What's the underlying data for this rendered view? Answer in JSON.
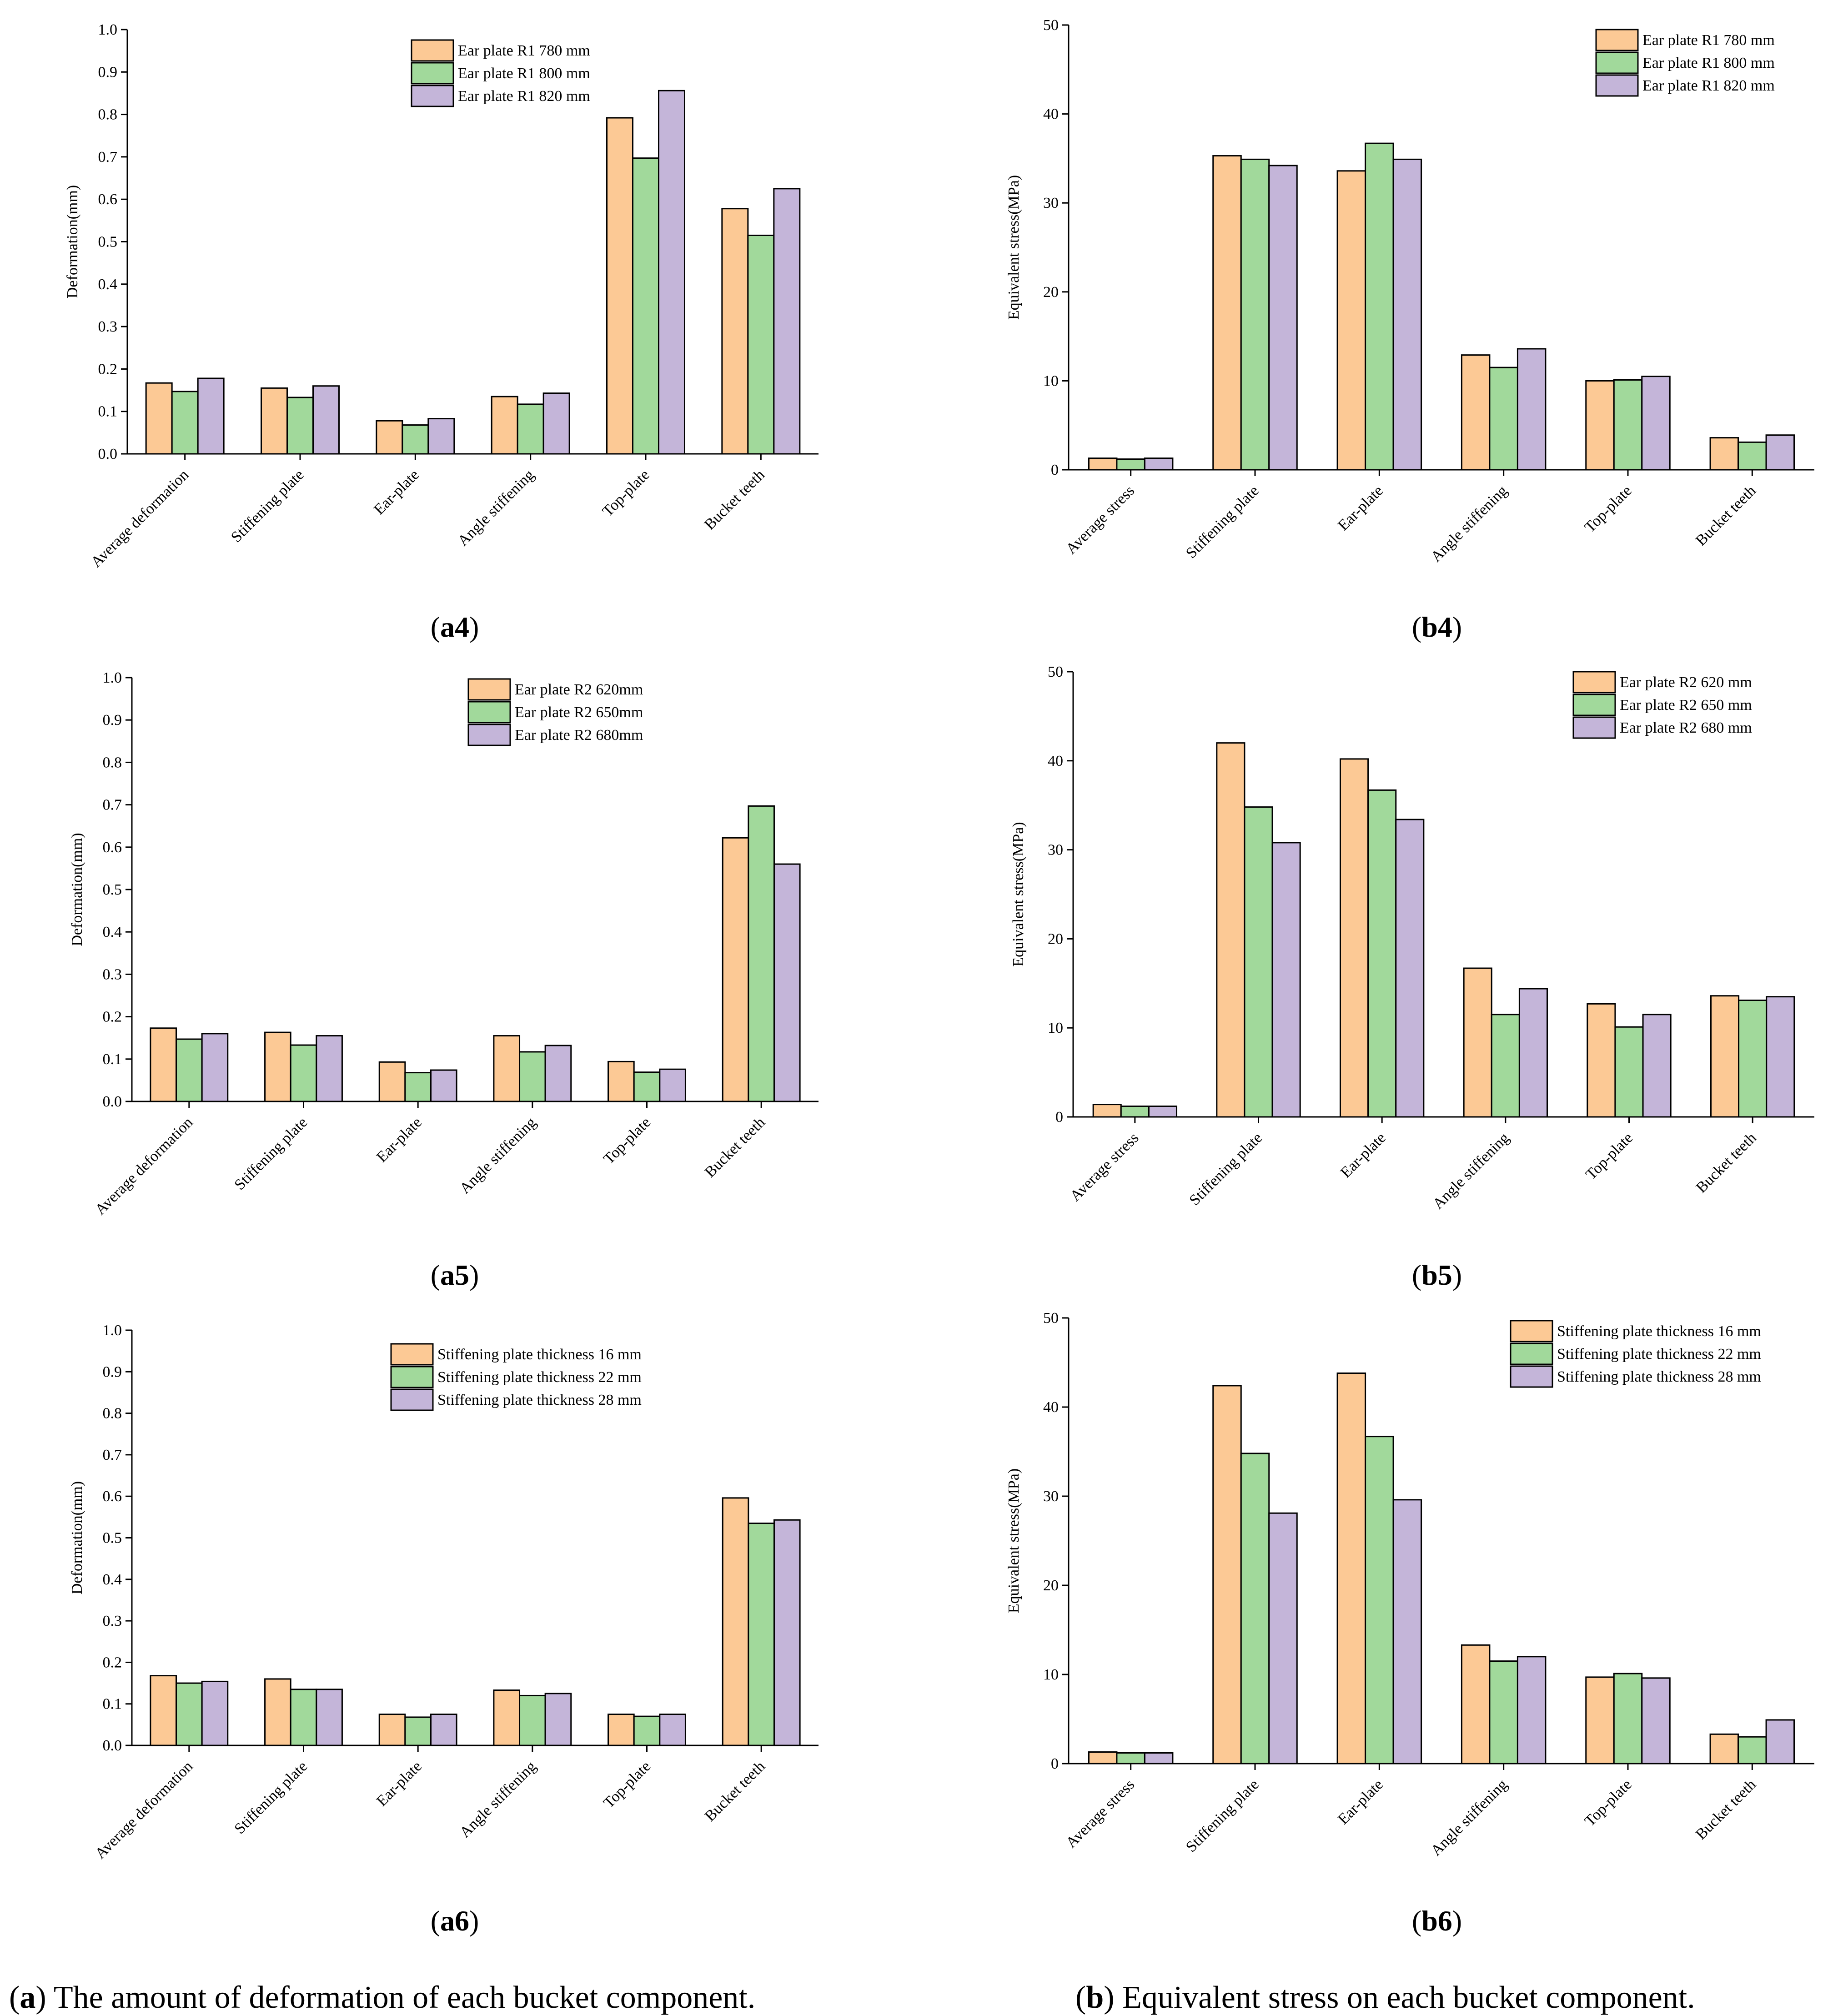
{
  "colors": {
    "series1": "#fcc995",
    "series2": "#a1d99b",
    "series3": "#c4b5d9",
    "stroke": "#000000"
  },
  "captions": {
    "a": {
      "letter": "a",
      "text": " The amount of deformation of each bucket component."
    },
    "b": {
      "letter": "b",
      "text": " Equivalent stress on each bucket component."
    }
  },
  "chart_data": [
    {
      "id": "a4",
      "type": "bar",
      "label": "a4",
      "ylabel": "Deformation(mm)",
      "ylim": [
        0,
        1.0
      ],
      "yticks": [
        "0.0",
        "0.1",
        "0.2",
        "0.3",
        "0.4",
        "0.5",
        "0.6",
        "0.7",
        "0.8",
        "0.9",
        "1.0"
      ],
      "categories": [
        "Average deformation",
        "Stiffening plate",
        "Ear-plate",
        "Angle stiffening",
        "Top-plate",
        "Bucket teeth"
      ],
      "series": [
        {
          "name": "Ear plate R1 780 mm",
          "values": [
            0.167,
            0.155,
            0.078,
            0.135,
            0.792,
            0.578
          ]
        },
        {
          "name": "Ear plate R1 800 mm",
          "values": [
            0.147,
            0.133,
            0.068,
            0.117,
            0.697,
            0.515
          ]
        },
        {
          "name": "Ear plate R1 820 mm",
          "values": [
            0.178,
            0.16,
            0.083,
            0.143,
            0.856,
            0.625
          ]
        }
      ]
    },
    {
      "id": "b4",
      "type": "bar",
      "label": "b4",
      "ylabel": "Equivalent stress(MPa)",
      "ylim": [
        0,
        50
      ],
      "yticks": [
        "0",
        "10",
        "20",
        "30",
        "40",
        "50"
      ],
      "categories": [
        "Average stress",
        "Stiffening plate",
        "Ear-plate",
        "Angle stiffening",
        "Top-plate",
        "Bucket teeth"
      ],
      "series": [
        {
          "name": "Ear plate R1 780 mm",
          "values": [
            1.3,
            35.3,
            33.6,
            12.9,
            10.0,
            3.6
          ]
        },
        {
          "name": "Ear plate R1 800 mm",
          "values": [
            1.2,
            34.9,
            36.7,
            11.5,
            10.1,
            3.1
          ]
        },
        {
          "name": "Ear plate R1 820 mm",
          "values": [
            1.3,
            34.2,
            34.9,
            13.6,
            10.5,
            3.9
          ]
        }
      ]
    },
    {
      "id": "a5",
      "type": "bar",
      "label": "a5",
      "ylabel": "Deformation(mm)",
      "ylim": [
        0,
        1.0
      ],
      "yticks": [
        "0.0",
        "0.1",
        "0.2",
        "0.3",
        "0.4",
        "0.5",
        "0.6",
        "0.7",
        "0.8",
        "0.9",
        "1.0"
      ],
      "categories": [
        "Average deformation",
        "Stiffening plate",
        "Ear-plate",
        "Angle stiffening",
        "Top-plate",
        "Bucket teeth"
      ],
      "series": [
        {
          "name": "Ear plate R2 620mm",
          "values": [
            0.173,
            0.163,
            0.093,
            0.155,
            0.094,
            0.622
          ]
        },
        {
          "name": "Ear plate R2 650mm",
          "values": [
            0.147,
            0.133,
            0.068,
            0.117,
            0.069,
            0.697
          ]
        },
        {
          "name": "Ear plate R2 680mm",
          "values": [
            0.16,
            0.155,
            0.074,
            0.132,
            0.076,
            0.56
          ]
        }
      ]
    },
    {
      "id": "b5",
      "type": "bar",
      "label": "b5",
      "ylabel": "Equivalent stress(MPa)",
      "ylim": [
        0,
        50
      ],
      "yticks": [
        "0",
        "10",
        "20",
        "30",
        "40",
        "50"
      ],
      "categories": [
        "Average stress",
        "Stiffening plate",
        "Ear-plate",
        "Angle stiffening",
        "Top-plate",
        "Bucket teeth"
      ],
      "series": [
        {
          "name": "Ear plate R2 620 mm",
          "values": [
            1.4,
            42.0,
            40.2,
            16.7,
            12.7,
            13.6
          ]
        },
        {
          "name": "Ear plate R2 650 mm",
          "values": [
            1.2,
            34.8,
            36.7,
            11.5,
            10.1,
            13.1
          ]
        },
        {
          "name": "Ear plate R2 680 mm",
          "values": [
            1.2,
            30.8,
            33.4,
            14.4,
            11.5,
            13.5
          ]
        }
      ]
    },
    {
      "id": "a6",
      "type": "bar",
      "label": "a6",
      "ylabel": "Deformation(mm)",
      "ylim": [
        0,
        1.0
      ],
      "yticks": [
        "0.0",
        "0.1",
        "0.2",
        "0.3",
        "0.4",
        "0.5",
        "0.6",
        "0.7",
        "0.8",
        "0.9",
        "1.0"
      ],
      "categories": [
        "Average deformation",
        "Stiffening plate",
        "Ear-plate",
        "Angle stiffening",
        "Top-plate",
        "Bucket teeth"
      ],
      "series": [
        {
          "name": "Stiffening plate thickness 16 mm",
          "values": [
            0.168,
            0.16,
            0.075,
            0.133,
            0.075,
            0.596
          ]
        },
        {
          "name": "Stiffening plate thickness 22 mm",
          "values": [
            0.15,
            0.135,
            0.068,
            0.12,
            0.07,
            0.535
          ]
        },
        {
          "name": "Stiffening plate thickness 28 mm",
          "values": [
            0.154,
            0.135,
            0.075,
            0.125,
            0.075,
            0.543
          ]
        }
      ]
    },
    {
      "id": "b6",
      "type": "bar",
      "label": "b6",
      "ylabel": "Equivalent stress(MPa)",
      "ylim": [
        0,
        50
      ],
      "yticks": [
        "0",
        "10",
        "20",
        "30",
        "40",
        "50"
      ],
      "categories": [
        "Average stress",
        "Stiffening plate",
        "Ear-plate",
        "Angle stiffening",
        "Top-plate",
        "Bucket teeth"
      ],
      "series": [
        {
          "name": "Stiffening plate thickness 16 mm",
          "values": [
            1.3,
            42.4,
            43.8,
            13.3,
            9.7,
            3.3
          ]
        },
        {
          "name": "Stiffening plate thickness 22 mm",
          "values": [
            1.2,
            34.8,
            36.7,
            11.5,
            10.1,
            3.0
          ]
        },
        {
          "name": "Stiffening plate thickness 28 mm",
          "values": [
            1.2,
            28.1,
            29.6,
            12.0,
            9.6,
            4.9
          ]
        }
      ]
    }
  ]
}
